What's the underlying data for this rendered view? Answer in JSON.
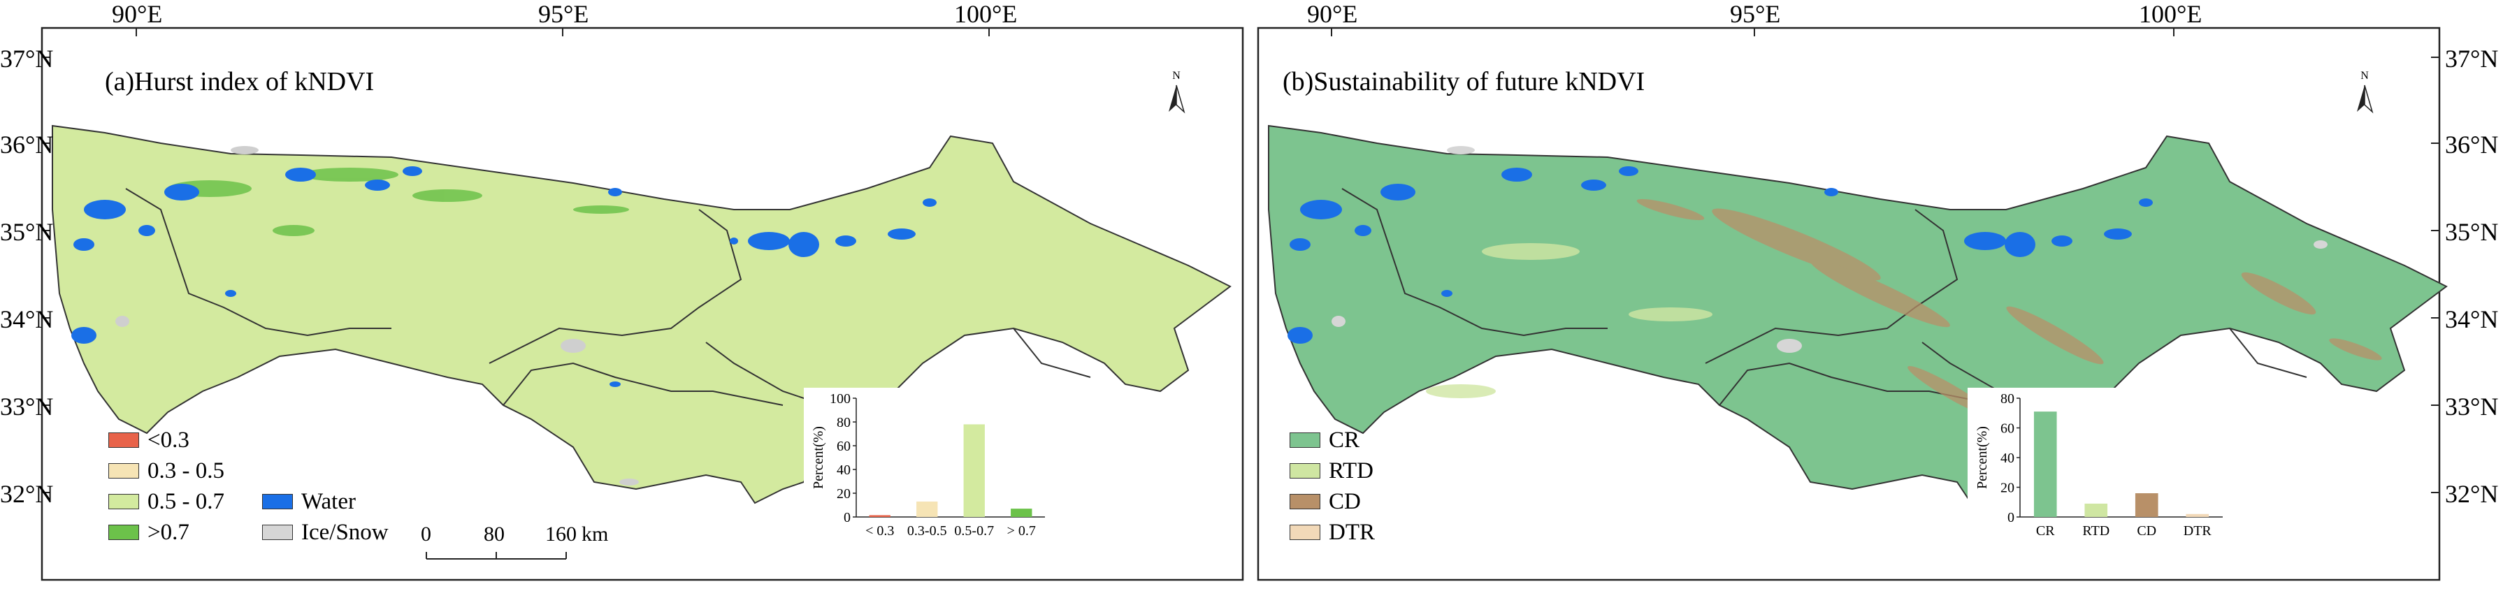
{
  "axes": {
    "lon_ticks": [
      "90°E",
      "95°E",
      "100°E"
    ],
    "lat_ticks": [
      "37°N",
      "36°N",
      "35°N",
      "34°N",
      "33°N",
      "32°N"
    ]
  },
  "panel_a": {
    "title": "(a)Hurst index of kNDVI",
    "north_label": "N",
    "legend": [
      {
        "label": "<0.3",
        "color": "#e8634a"
      },
      {
        "label": "0.3 - 0.5",
        "color": "#f6e4b5"
      },
      {
        "label": "0.5 - 0.7",
        "color": "#d3ea9f"
      },
      {
        "label": ">0.7",
        "color": "#6cc24a"
      }
    ],
    "legend_extra": [
      {
        "label": "Water",
        "color": "#1a6fe6"
      },
      {
        "label": "Ice/Snow",
        "color": "#d6d6d6"
      }
    ],
    "scalebar": {
      "labels": [
        "0",
        "80",
        "160"
      ],
      "unit": "km"
    }
  },
  "panel_b": {
    "title": "(b)Sustainability of  future kNDVI",
    "north_label": "N",
    "legend": [
      {
        "label": "CR",
        "color": "#7dc48f"
      },
      {
        "label": "RTD",
        "color": "#cfe6a2"
      },
      {
        "label": "CD",
        "color": "#b89068"
      },
      {
        "label": "DTR",
        "color": "#f2d9b8"
      }
    ]
  },
  "chart_data": [
    {
      "type": "bar",
      "categories": [
        "< 0.3",
        "0.3-0.5",
        "0.5-0.7",
        "> 0.7"
      ],
      "values": [
        1.5,
        13,
        78,
        7
      ],
      "colors": [
        "#e8634a",
        "#f6e4b5",
        "#d3ea9f",
        "#6cc24a"
      ],
      "ylabel": "Percent(%)",
      "ylim": [
        0,
        100
      ],
      "yticks": [
        0,
        20,
        40,
        60,
        80,
        100
      ]
    },
    {
      "type": "bar",
      "categories": [
        "CR",
        "RTD",
        "CD",
        "DTR"
      ],
      "values": [
        71,
        9,
        16,
        2
      ],
      "colors": [
        "#7dc48f",
        "#cfe6a2",
        "#b89068",
        "#f2d9b8"
      ],
      "ylabel": "Percent(%)",
      "ylim": [
        0,
        80
      ],
      "yticks": [
        0,
        20,
        40,
        60,
        80
      ]
    }
  ]
}
